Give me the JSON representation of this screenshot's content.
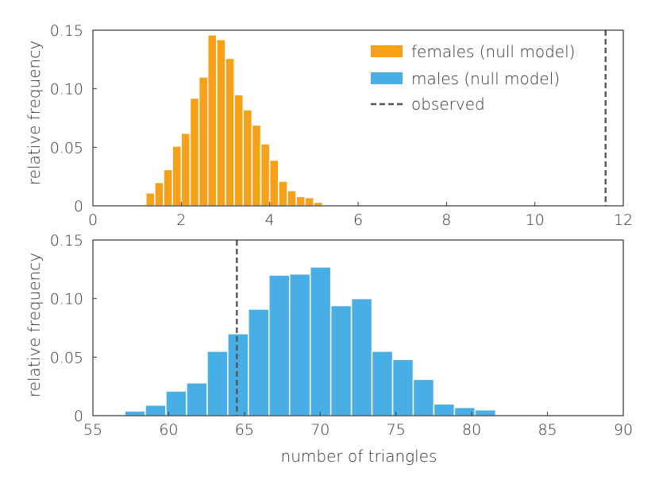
{
  "chart_data": [
    {
      "type": "bar",
      "title": "",
      "xlabel": "",
      "ylabel": "relative frequency",
      "xlim": [
        0,
        12
      ],
      "ylim": [
        0,
        0.15
      ],
      "xticks": [
        "0",
        "2",
        "4",
        "6",
        "8",
        "10",
        "12"
      ],
      "yticks": [
        "0",
        "0.05",
        "0.10",
        "0.15"
      ],
      "bin_width": 0.2,
      "series": [
        {
          "name": "females (null model)",
          "color": "#f7a11a",
          "x": [
            1.2,
            1.4,
            1.6,
            1.8,
            2.0,
            2.2,
            2.4,
            2.6,
            2.8,
            3.0,
            3.2,
            3.4,
            3.6,
            3.8,
            4.0,
            4.2,
            4.4,
            4.6,
            4.8,
            5.0,
            5.2,
            5.4,
            5.6
          ],
          "values": [
            0.011,
            0.02,
            0.031,
            0.051,
            0.062,
            0.092,
            0.11,
            0.146,
            0.142,
            0.126,
            0.095,
            0.082,
            0.069,
            0.053,
            0.039,
            0.021,
            0.013,
            0.008,
            0.007,
            0.003,
            0.001,
            0.001,
            0.0005
          ]
        }
      ],
      "observed": {
        "name": "observed",
        "x": 11.6,
        "color": "#555555"
      },
      "legend": {
        "position": "top-right",
        "entries": [
          {
            "label": "females (null model)",
            "color": "#f7a11a",
            "kind": "patch"
          },
          {
            "label": "males (null model)",
            "color": "#47aee6",
            "kind": "patch"
          },
          {
            "label": "observed",
            "color": "#555555",
            "kind": "dashed-line"
          }
        ]
      }
    },
    {
      "type": "bar",
      "title": "",
      "xlabel": "number of triangles",
      "ylabel": "relative frequency",
      "xlim": [
        55,
        90
      ],
      "ylim": [
        0,
        0.15
      ],
      "xticks": [
        "55",
        "60",
        "65",
        "70",
        "75",
        "80",
        "85",
        "90"
      ],
      "yticks": [
        "0",
        "0.05",
        "0.10",
        "0.15"
      ],
      "bin_width": 1.36,
      "series": [
        {
          "name": "males (null model)",
          "color": "#47aee6",
          "x": [
            57.1,
            58.46,
            59.82,
            61.18,
            62.54,
            63.9,
            65.26,
            66.62,
            67.98,
            69.34,
            70.7,
            72.06,
            73.42,
            74.78,
            76.14,
            77.5,
            78.86,
            80.22,
            81.58,
            82.94,
            84.3,
            85.66,
            87.02
          ],
          "values": [
            0.004,
            0.009,
            0.021,
            0.028,
            0.055,
            0.07,
            0.091,
            0.12,
            0.121,
            0.127,
            0.094,
            0.1,
            0.055,
            0.048,
            0.031,
            0.01,
            0.007,
            0.005,
            0.001,
            0.001,
            0.0005,
            0.0005,
            0.0005
          ]
        }
      ],
      "observed": {
        "name": "observed",
        "x": 64.5,
        "color": "#555555"
      }
    }
  ]
}
